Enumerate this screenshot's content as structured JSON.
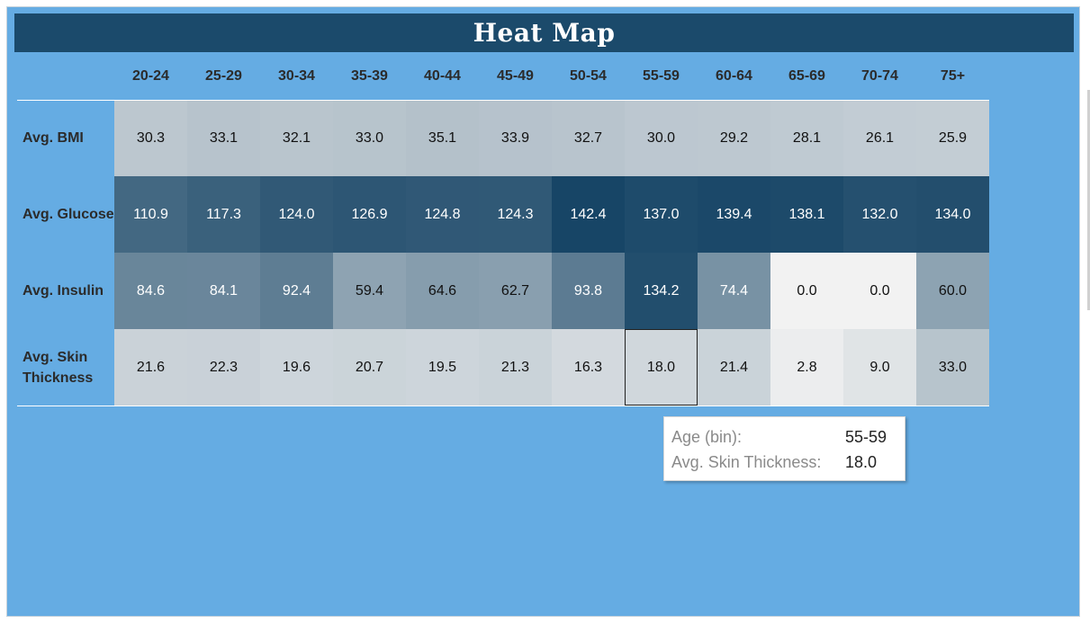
{
  "chart_data": {
    "type": "heatmap",
    "title": "Heat Map",
    "columns": [
      "20-24",
      "25-29",
      "30-34",
      "35-39",
      "40-44",
      "45-49",
      "50-54",
      "55-59",
      "60-64",
      "65-69",
      "70-74",
      "75+"
    ],
    "rows": [
      {
        "label": "Avg. BMI",
        "values": [
          30.3,
          33.1,
          32.1,
          33.0,
          35.1,
          33.9,
          32.7,
          30.0,
          29.2,
          28.1,
          26.1,
          25.9
        ],
        "display": [
          "30.3",
          "33.1",
          "32.1",
          "33.0",
          "35.1",
          "33.9",
          "32.7",
          "30.0",
          "29.2",
          "28.1",
          "26.1",
          "25.9"
        ]
      },
      {
        "label": "Avg. Glucose",
        "values": [
          110.9,
          117.3,
          124.0,
          126.9,
          124.8,
          124.3,
          142.4,
          137.0,
          139.4,
          138.1,
          132.0,
          134.0
        ],
        "display": [
          "110.9",
          "117.3",
          "124.0",
          "126.9",
          "124.8",
          "124.3",
          "142.4",
          "137.0",
          "139.4",
          "138.1",
          "132.0",
          "134.0"
        ]
      },
      {
        "label": "Avg. Insulin",
        "values": [
          84.6,
          84.1,
          92.4,
          59.4,
          64.6,
          62.7,
          93.8,
          134.2,
          74.4,
          0.0,
          0.0,
          60.0
        ],
        "display": [
          "84.6",
          "84.1",
          "92.4",
          "59.4",
          "64.6",
          "62.7",
          "93.8",
          "134.2",
          "74.4",
          "0.0",
          "0.0",
          "60.0"
        ]
      },
      {
        "label": "Avg. Skin Thickness",
        "values": [
          21.6,
          22.3,
          19.6,
          20.7,
          19.5,
          21.3,
          16.3,
          18.0,
          21.4,
          2.8,
          9.0,
          33.0
        ],
        "display": [
          "21.6",
          "22.3",
          "19.6",
          "20.7",
          "19.5",
          "21.3",
          "16.3",
          "18.0",
          "21.4",
          "2.8",
          "9.0",
          "33.0"
        ]
      }
    ],
    "selected": {
      "row": 3,
      "col": 7
    },
    "color_scale": {
      "low": "#f2f2f2",
      "high": "#174566"
    },
    "colors": {
      "background": "#65ace3",
      "title_bar": "#1b4a6b"
    }
  },
  "tooltip": {
    "row1_label": "Age (bin):",
    "row1_value": "55-59",
    "row2_label": "Avg. Skin Thickness:",
    "row2_value": "18.0"
  }
}
